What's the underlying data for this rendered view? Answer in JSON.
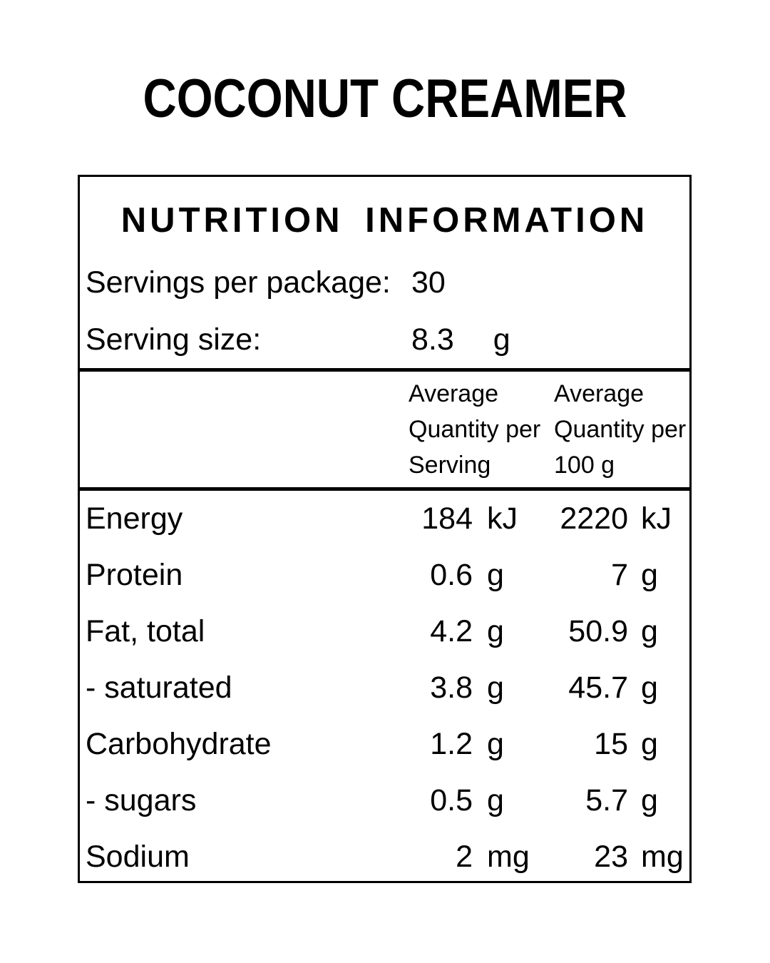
{
  "title": "COCONUT CREAMER",
  "colors": {
    "background": "#ffffff",
    "text": "#000000",
    "border": "#000000"
  },
  "panel": {
    "heading": "NUTRITION INFORMATION",
    "servings_per_package": {
      "label": "Servings per package:",
      "value": "30"
    },
    "serving_size": {
      "label": "Serving size:",
      "value": "8.3",
      "unit": "g"
    },
    "column_headers": [
      {
        "lines": [
          "Average",
          "Quantity per",
          "Serving"
        ]
      },
      {
        "lines": [
          "Average",
          "Quantity per",
          "100 g"
        ]
      }
    ],
    "rows": [
      {
        "label": "Energy",
        "serving_value": "184",
        "serving_unit": "kJ",
        "per100_value": "2220",
        "per100_unit": "kJ"
      },
      {
        "label": "Protein",
        "serving_value": "0.6",
        "serving_unit": "g",
        "per100_value": "7",
        "per100_unit": "g"
      },
      {
        "label": "Fat, total",
        "serving_value": "4.2",
        "serving_unit": "g",
        "per100_value": "50.9",
        "per100_unit": "g"
      },
      {
        "label": "- saturated",
        "serving_value": "3.8",
        "serving_unit": "g",
        "per100_value": "45.7",
        "per100_unit": "g"
      },
      {
        "label": "Carbohydrate",
        "serving_value": "1.2",
        "serving_unit": "g",
        "per100_value": "15",
        "per100_unit": "g"
      },
      {
        "label": "- sugars",
        "serving_value": "0.5",
        "serving_unit": "g",
        "per100_value": "5.7",
        "per100_unit": "g"
      },
      {
        "label": "Sodium",
        "serving_value": "2",
        "serving_unit": "mg",
        "per100_value": "23",
        "per100_unit": "mg"
      }
    ]
  }
}
